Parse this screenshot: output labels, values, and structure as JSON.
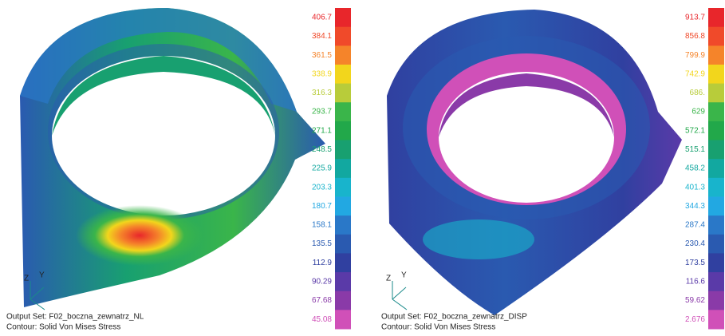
{
  "panels": [
    {
      "legend": {
        "labels": [
          "406.7",
          "384.1",
          "361.5",
          "338.9",
          "316.3",
          "293.7",
          "271.1",
          "248.5",
          "225.9",
          "203.3",
          "180.7",
          "158.1",
          "135.5",
          "112.9",
          "90.29",
          "67.68",
          "45.08"
        ]
      },
      "axes": [
        "Z",
        "Y"
      ],
      "output_set": "Output Set: F02_boczna_zewnatrz_NL",
      "contour": "Contour: Solid Von Mises Stress"
    },
    {
      "legend": {
        "labels": [
          "913.7",
          "856.8",
          "799.9",
          "742.9",
          "686.",
          "629",
          "572.1",
          "515.1",
          "458.2",
          "401.3",
          "344.3",
          "287.4",
          "230.4",
          "173.5",
          "116.6",
          "59.62",
          "2.676"
        ]
      },
      "axes": [
        "Z",
        "Y"
      ],
      "output_set": "Output Set: F02_boczna_zewnatrz_DISP",
      "contour": "Contour: Solid Von Mises Stress"
    }
  ],
  "legend_colors": [
    "#e8262b",
    "#f04a2a",
    "#f5842a",
    "#f2d61c",
    "#b8cc3a",
    "#3ab54a",
    "#22a84a",
    "#18a070",
    "#12a8a0",
    "#18b4cc",
    "#22a8e2",
    "#2a78c8",
    "#2a5ab0",
    "#3040a0",
    "#5a3aa8",
    "#8a3aa8",
    "#d050b8"
  ]
}
